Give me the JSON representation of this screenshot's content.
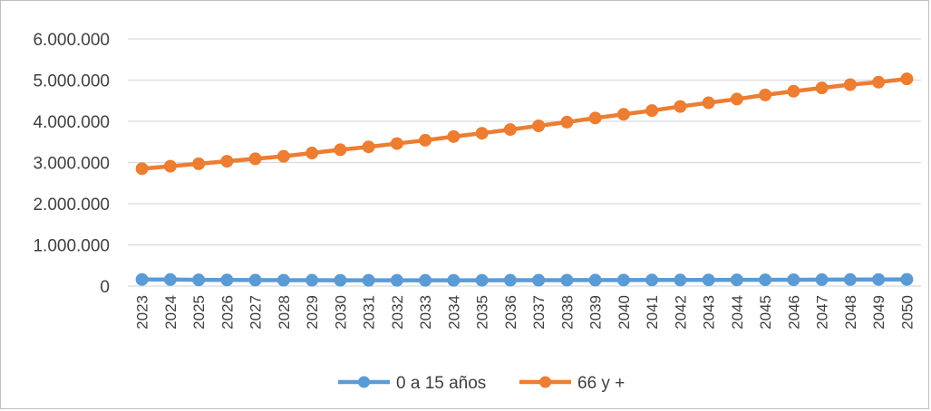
{
  "chart_data": {
    "type": "line",
    "title": "",
    "xlabel": "",
    "ylabel": "",
    "ylim": [
      0,
      6000000
    ],
    "yticks": [
      0,
      1000000,
      2000000,
      3000000,
      4000000,
      5000000,
      6000000
    ],
    "ytick_labels": [
      "0",
      "1.000.000",
      "2.000.000",
      "3.000.000",
      "4.000.000",
      "5.000.000",
      "6.000.000"
    ],
    "grid": true,
    "legend_position": "bottom",
    "categories": [
      "2023",
      "2024",
      "2025",
      "2026",
      "2027",
      "2028",
      "2029",
      "2030",
      "2031",
      "2032",
      "2033",
      "2034",
      "2035",
      "2036",
      "2037",
      "2038",
      "2039",
      "2040",
      "2041",
      "2042",
      "2043",
      "2044",
      "2045",
      "2046",
      "2047",
      "2048",
      "2049",
      "2050"
    ],
    "series": [
      {
        "name": "0 a 15 años",
        "color": "#5b9bd5",
        "values": [
          160000,
          158000,
          150000,
          148000,
          145000,
          143000,
          142000,
          141000,
          140000,
          139000,
          139000,
          140000,
          141000,
          142000,
          143000,
          144000,
          145000,
          146000,
          147000,
          148000,
          149000,
          150000,
          152000,
          154000,
          156000,
          158000,
          160000,
          162000
        ]
      },
      {
        "name": "66 y +",
        "color": "#ed7d31",
        "values": [
          2850000,
          2910000,
          2970000,
          3030000,
          3090000,
          3150000,
          3230000,
          3310000,
          3380000,
          3460000,
          3540000,
          3630000,
          3710000,
          3800000,
          3890000,
          3980000,
          4080000,
          4170000,
          4260000,
          4360000,
          4450000,
          4540000,
          4640000,
          4730000,
          4810000,
          4890000,
          4950000,
          5030000
        ]
      }
    ]
  }
}
